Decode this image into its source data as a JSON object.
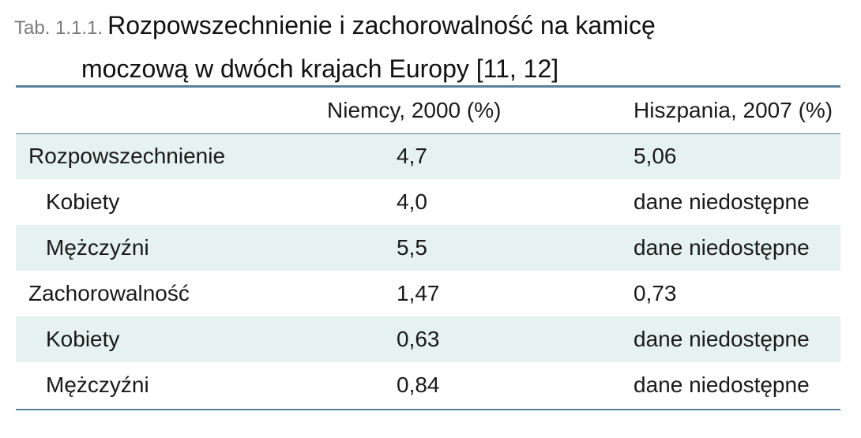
{
  "caption": {
    "label": "Tab. 1.1.1.",
    "title_line1": "Rozpowszechnienie i zachorowalność na kamicę",
    "title_line2": "moczową w dwóch krajach Europy [11, 12]"
  },
  "table": {
    "headers": [
      "",
      "Niemcy, 2000 (%)",
      "Hiszpania, 2007 (%)"
    ],
    "rows": [
      {
        "label": "Rozpowszechnienie",
        "indent": false,
        "niemcy": "4,7",
        "hiszpania": "5,06"
      },
      {
        "label": "Kobiety",
        "indent": true,
        "niemcy": "4,0",
        "hiszpania": "dane niedostępne"
      },
      {
        "label": "Mężczyźni",
        "indent": true,
        "niemcy": "5,5",
        "hiszpania": "dane niedostępne"
      },
      {
        "label": "Zachorowalność",
        "indent": false,
        "niemcy": "1,47",
        "hiszpania": "0,73"
      },
      {
        "label": "Kobiety",
        "indent": true,
        "niemcy": "0,63",
        "hiszpania": "dane niedostępne"
      },
      {
        "label": "Mężczyźni",
        "indent": true,
        "niemcy": "0,84",
        "hiszpania": "dane niedostępne"
      }
    ]
  },
  "colors": {
    "rule": "#5b7f99",
    "row_shade": "#e6f2ef",
    "label_gray": "#7a7a7a"
  }
}
